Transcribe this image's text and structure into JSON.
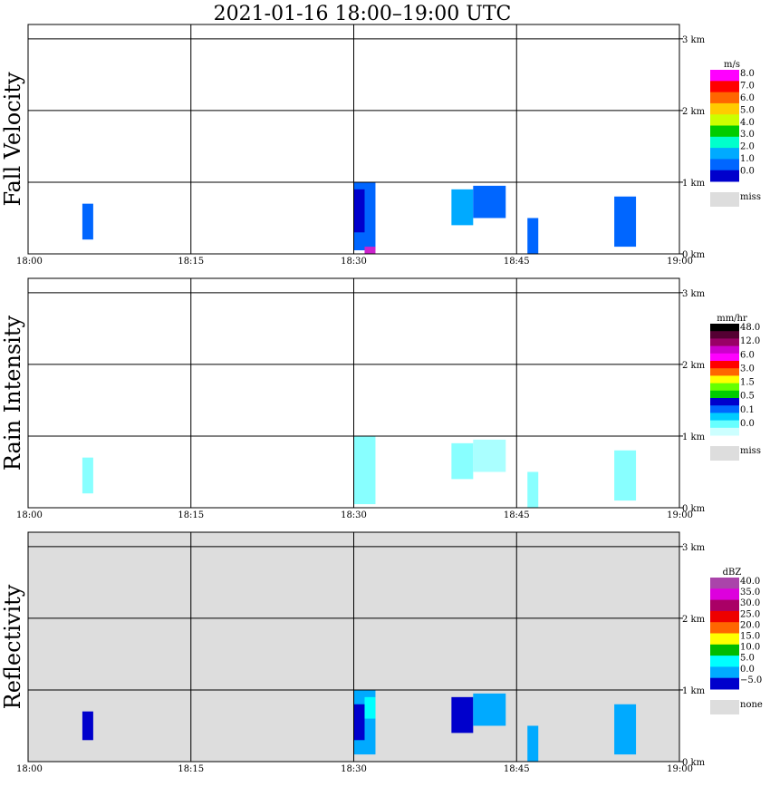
{
  "title": "2021-01-16   18:00–19:00 UTC",
  "x_ticks": [
    "18:00",
    "18:15",
    "18:30",
    "18:45",
    "19:00"
  ],
  "alt_ticks": [
    "0 km",
    "1 km",
    "2 km",
    "3 km"
  ],
  "chart_data": [
    {
      "type": "heatmap",
      "ylabel": "Fall Velocity",
      "xlim": [
        "18:00",
        "19:00"
      ],
      "ylim_km": [
        0,
        3.2
      ],
      "grid": true,
      "colorbar": {
        "unit": "m/s",
        "labels": [
          "8.0",
          "7.0",
          "6.0",
          "5.0",
          "4.0",
          "3.0",
          "2.0",
          "1.0",
          "0.0"
        ],
        "colors": [
          "#ff00ff",
          "#ff0000",
          "#ff6600",
          "#ffcc00",
          "#ccff00",
          "#00cc00",
          "#00ffcc",
          "#00aaff",
          "#0066ff",
          "#0000cc"
        ],
        "missing_label": "miss",
        "missing_color": "#dddddd"
      },
      "background": "#ffffff",
      "echoes": [
        {
          "t0": "18:05",
          "t1": "18:06",
          "z0": 0.2,
          "z1": 0.7,
          "color": "#0066ff"
        },
        {
          "t0": "18:30",
          "t1": "18:32",
          "z0": 0.05,
          "z1": 1.0,
          "color": "#0066ff"
        },
        {
          "t0": "18:30",
          "t1": "18:31",
          "z0": 0.3,
          "z1": 0.9,
          "color": "#0000cc"
        },
        {
          "t0": "18:31",
          "t1": "18:32",
          "z0": 0.0,
          "z1": 0.1,
          "color": "#cc22cc"
        },
        {
          "t0": "18:39",
          "t1": "18:41",
          "z0": 0.4,
          "z1": 0.9,
          "color": "#00aaff"
        },
        {
          "t0": "18:41",
          "t1": "18:44",
          "z0": 0.5,
          "z1": 0.95,
          "color": "#0066ff"
        },
        {
          "t0": "18:46",
          "t1": "18:47",
          "z0": 0.0,
          "z1": 0.5,
          "color": "#0066ff"
        },
        {
          "t0": "18:54",
          "t1": "18:56",
          "z0": 0.1,
          "z1": 0.8,
          "color": "#0066ff"
        }
      ]
    },
    {
      "type": "heatmap",
      "ylabel": "Rain Intensity",
      "xlim": [
        "18:00",
        "19:00"
      ],
      "ylim_km": [
        0,
        3.2
      ],
      "grid": true,
      "colorbar": {
        "unit": "mm/hr",
        "labels": [
          "48.0",
          "12.0",
          "6.0",
          "3.0",
          "1.5",
          "0.5",
          "0.1",
          "0.0"
        ],
        "colors": [
          "#000000",
          "#550033",
          "#990066",
          "#cc00cc",
          "#ff00ff",
          "#ff0000",
          "#ff6600",
          "#ffff00",
          "#66ff00",
          "#00cc00",
          "#0000cc",
          "#0066ff",
          "#00ccff",
          "#66ffff",
          "#ccffff"
        ],
        "missing_label": "miss",
        "missing_color": "#dddddd"
      },
      "background": "#ffffff",
      "echoes": [
        {
          "t0": "18:05",
          "t1": "18:06",
          "z0": 0.2,
          "z1": 0.7,
          "color": "#88ffff"
        },
        {
          "t0": "18:30",
          "t1": "18:32",
          "z0": 0.05,
          "z1": 1.0,
          "color": "#88ffff"
        },
        {
          "t0": "18:39",
          "t1": "18:41",
          "z0": 0.4,
          "z1": 0.9,
          "color": "#88ffff"
        },
        {
          "t0": "18:41",
          "t1": "18:44",
          "z0": 0.5,
          "z1": 0.95,
          "color": "#aaffff"
        },
        {
          "t0": "18:46",
          "t1": "18:47",
          "z0": 0.0,
          "z1": 0.5,
          "color": "#88ffff"
        },
        {
          "t0": "18:54",
          "t1": "18:56",
          "z0": 0.1,
          "z1": 0.8,
          "color": "#88ffff"
        }
      ]
    },
    {
      "type": "heatmap",
      "ylabel": "Reflectivity",
      "xlim": [
        "18:00",
        "19:00"
      ],
      "ylim_km": [
        0,
        3.2
      ],
      "grid": true,
      "colorbar": {
        "unit": "dBZ",
        "labels": [
          "40.0",
          "35.0",
          "30.0",
          "25.0",
          "20.0",
          "15.0",
          "10.0",
          "5.0",
          "0.0",
          "−5.0"
        ],
        "colors": [
          "#aa44aa",
          "#dd00dd",
          "#aa0066",
          "#ee0000",
          "#ff6600",
          "#ffff00",
          "#00bb00",
          "#00ffff",
          "#00aaff",
          "#0000cc"
        ],
        "missing_label": "none",
        "missing_color": "#dddddd"
      },
      "background": "#dddddd",
      "echoes": [
        {
          "t0": "18:05",
          "t1": "18:06",
          "z0": 0.3,
          "z1": 0.7,
          "color": "#0000cc"
        },
        {
          "t0": "18:30",
          "t1": "18:32",
          "z0": 0.1,
          "z1": 1.0,
          "color": "#00aaff"
        },
        {
          "t0": "18:30",
          "t1": "18:31",
          "z0": 0.3,
          "z1": 0.8,
          "color": "#0000cc"
        },
        {
          "t0": "18:31",
          "t1": "18:32",
          "z0": 0.6,
          "z1": 0.9,
          "color": "#00ffff"
        },
        {
          "t0": "18:39",
          "t1": "18:41",
          "z0": 0.4,
          "z1": 0.9,
          "color": "#0000cc"
        },
        {
          "t0": "18:41",
          "t1": "18:44",
          "z0": 0.5,
          "z1": 0.95,
          "color": "#00aaff"
        },
        {
          "t0": "18:46",
          "t1": "18:47",
          "z0": 0.0,
          "z1": 0.5,
          "color": "#00aaff"
        },
        {
          "t0": "18:54",
          "t1": "18:56",
          "z0": 0.1,
          "z1": 0.8,
          "color": "#00aaff"
        }
      ]
    }
  ]
}
